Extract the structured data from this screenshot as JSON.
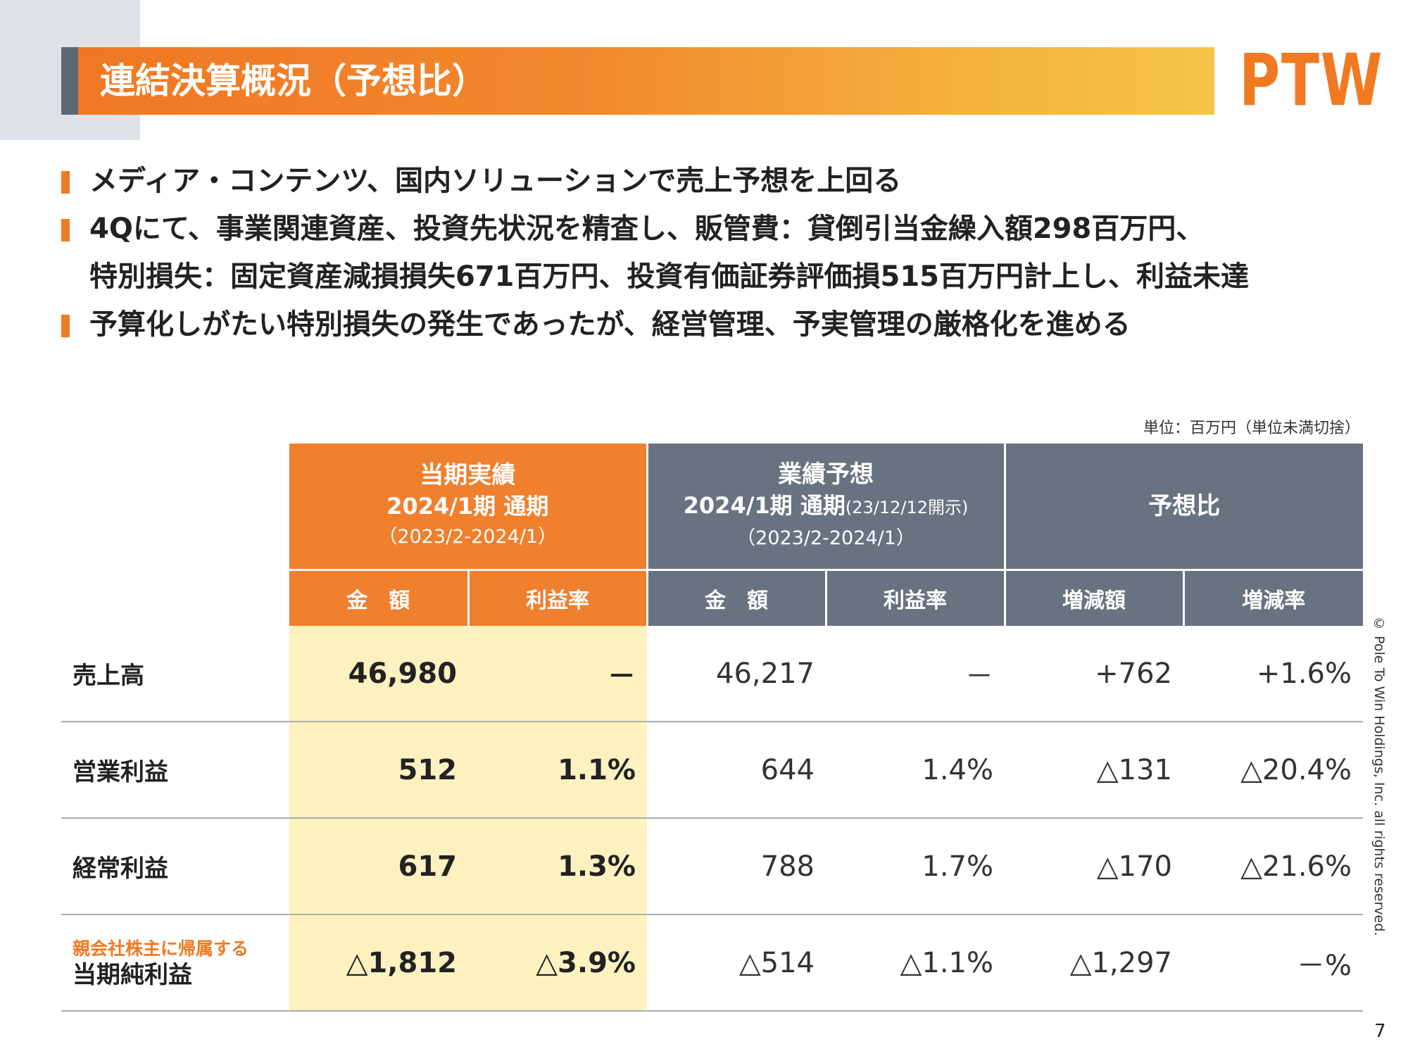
{
  "title": "連結決算概況（予想比）",
  "logo": "PTW",
  "bullets": [
    {
      "text": "メディア・コンテンツ、国内ソリューションで売上予想を上回る"
    },
    {
      "text": "4Qにて、事業関連資産、投資先状況を精査し、販管費：貸倒引当金繰入額298百万円、",
      "cont": "特別損失：固定資産減損損失671百万円、投資有価証券評価損515百万円計上し、利益未達"
    },
    {
      "text": "予算化しがたい特別損失の発生であったが、経営管理、予実管理の厳格化を進める"
    }
  ],
  "unit_note": "単位：百万円（単位未満切捨）",
  "table": {
    "header": {
      "actual": {
        "title": "当期実績",
        "period": "2024/1期 通期",
        "range": "（2023/2-2024/1）"
      },
      "forecast": {
        "title": "業績予想",
        "period": "2024/1期 通期",
        "disclosed": "(23/12/12開示)",
        "range": "（2023/2-2024/1）"
      },
      "comparison": {
        "title": "予想比"
      }
    },
    "subheader": {
      "actual_amount": "金　額",
      "actual_margin": "利益率",
      "forecast_amount": "金　額",
      "forecast_margin": "利益率",
      "change_amount": "増減額",
      "change_rate": "増減率"
    },
    "rows": [
      {
        "label": "売上高",
        "actual_amount": "46,980",
        "actual_margin": "－",
        "forecast_amount": "46,217",
        "forecast_margin": "－",
        "change_amount": "+762",
        "change_rate": "+1.6%"
      },
      {
        "label": "営業利益",
        "actual_amount": "512",
        "actual_margin": "1.1%",
        "forecast_amount": "644",
        "forecast_margin": "1.4%",
        "change_amount": "△131",
        "change_rate": "△20.4%"
      },
      {
        "label": "経常利益",
        "actual_amount": "617",
        "actual_margin": "1.3%",
        "forecast_amount": "788",
        "forecast_margin": "1.7%",
        "change_amount": "△170",
        "change_rate": "△21.6%"
      },
      {
        "label_note": "親会社株主に帰属する",
        "label": "当期純利益",
        "actual_amount": "△1,812",
        "actual_margin": "△3.9%",
        "forecast_amount": "△514",
        "forecast_margin": "△1.1%",
        "change_amount": "△1,297",
        "change_rate": "－%"
      }
    ]
  },
  "copyright": "© Pole To Win Holdings, Inc. all rights reserved.",
  "page_number": "7",
  "colors": {
    "accent": "#f07a22",
    "header_gray": "#687280",
    "highlight": "#fdf1c0"
  }
}
